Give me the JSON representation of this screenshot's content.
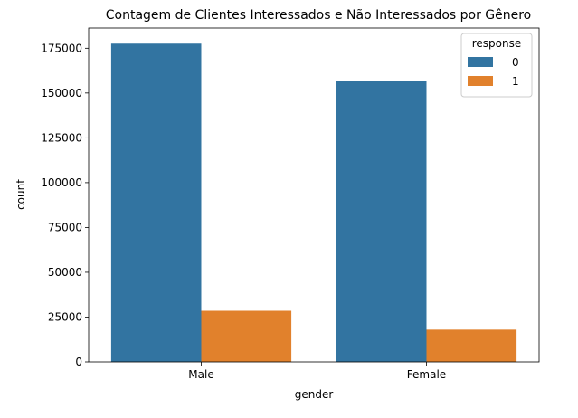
{
  "chart_data": {
    "type": "bar",
    "title": "Contagem de Clientes Interessados e Não Interessados por Gênero",
    "xlabel": "gender",
    "ylabel": "count",
    "categories": [
      "Male",
      "Female"
    ],
    "series": [
      {
        "name": "0",
        "values": [
          177564,
          156835
        ],
        "color": "#3274a1"
      },
      {
        "name": "1",
        "values": [
          28525,
          17999
        ],
        "color": "#e1812c"
      }
    ],
    "ylim": [
      0,
      186268
    ],
    "yticks": [
      0,
      25000,
      50000,
      75000,
      100000,
      125000,
      150000,
      175000
    ],
    "legend": {
      "title": "response",
      "position": "top-right"
    },
    "grid": false
  }
}
